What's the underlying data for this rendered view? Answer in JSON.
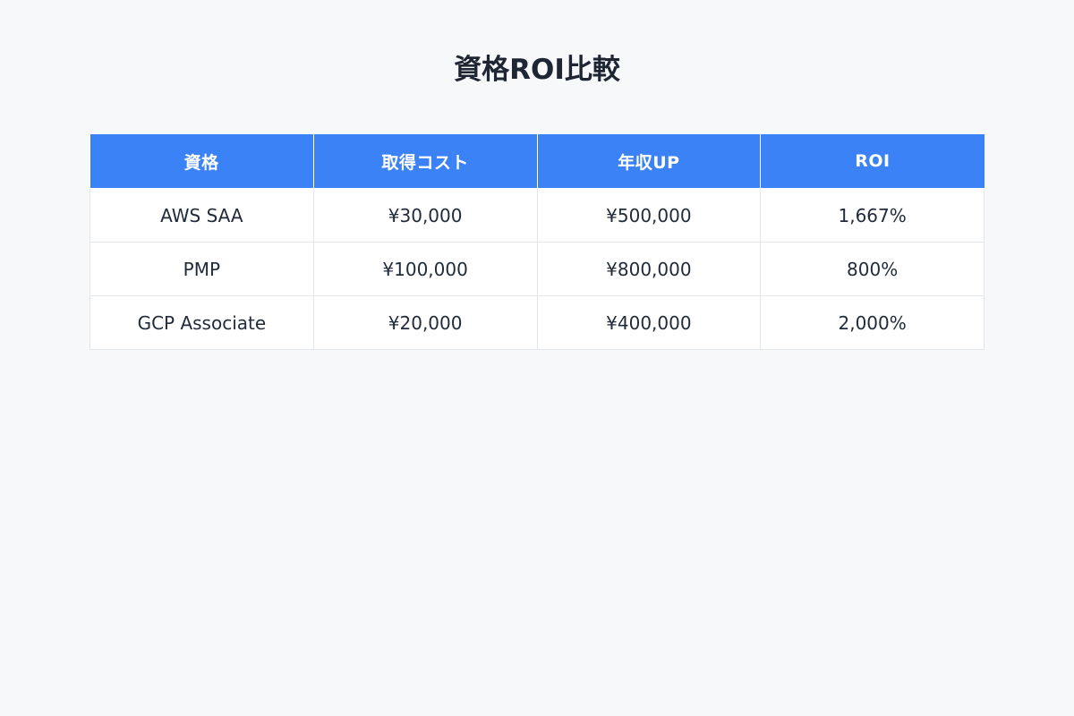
{
  "page": {
    "title": "資格ROI比較",
    "background_color": "#f7f8fa",
    "title_color": "#1e2533"
  },
  "table": {
    "header_bg_color": "#3b82f6",
    "header_text_color": "#ffffff",
    "row_bg_color": "#ffffff",
    "border_color": "#e3e6eb",
    "columns": [
      "資格",
      "取得コスト",
      "年収UP",
      "ROI"
    ],
    "rows": [
      [
        "AWS SAA",
        "¥30,000",
        "¥500,000",
        "1,667%"
      ],
      [
        "PMP",
        "¥100,000",
        "¥800,000",
        "800%"
      ],
      [
        "GCP Associate",
        "¥20,000",
        "¥400,000",
        "2,000%"
      ]
    ]
  },
  "chart_data": {
    "type": "table",
    "title": "資格ROI比較",
    "categories": [
      "AWS SAA",
      "PMP",
      "GCP Associate"
    ],
    "series": [
      {
        "name": "取得コスト",
        "values": [
          30000,
          100000,
          20000
        ]
      },
      {
        "name": "年収UP",
        "values": [
          500000,
          800000,
          400000
        ]
      },
      {
        "name": "ROI",
        "values": [
          1667,
          800,
          2000
        ]
      }
    ]
  }
}
